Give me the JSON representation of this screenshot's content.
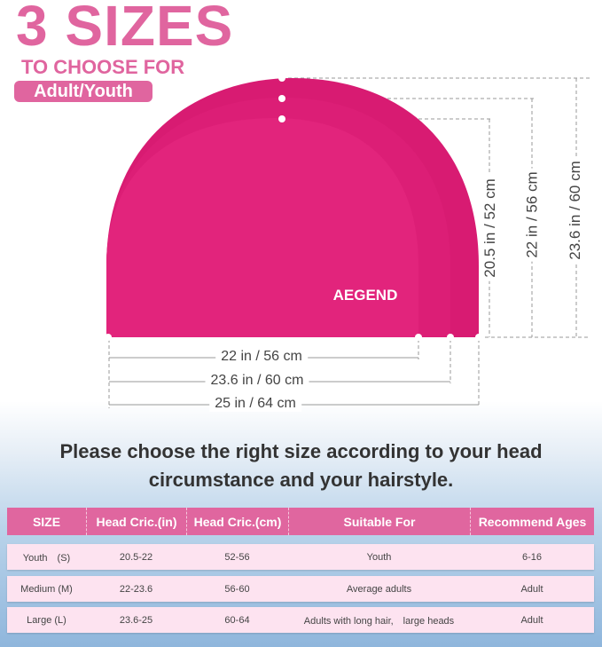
{
  "header": {
    "title": "3 SIZES",
    "subtitle": "TO CHOOSE FOR",
    "badge": "Adult/Youth"
  },
  "product": {
    "brand": "AEGEND",
    "color": "#e0217a"
  },
  "heights": [
    "20.5 in / 52 cm",
    "22 in / 56 cm",
    "23.6 in / 60 cm"
  ],
  "widths": [
    "22 in / 56 cm",
    "23.6 in / 60 cm",
    "25 in / 64 cm"
  ],
  "message": {
    "line1": "Please choose the right size according to your head",
    "line2": "circumstance and your hairstyle."
  },
  "table": {
    "headers": [
      "SIZE",
      "Head Cric.(in)",
      "Head Cric.(cm)",
      "Suitable For",
      "Recommend Ages"
    ],
    "rows": [
      [
        "Youth　(S)",
        "20.5-22",
        "52-56",
        "Youth",
        "6-16"
      ],
      [
        "Medium (M)",
        "22-23.6",
        "56-60",
        "Average adults",
        "Adult"
      ],
      [
        "Large (L)",
        "23.6-25",
        "60-64",
        "Adults with long hair,　large heads",
        "Adult"
      ]
    ]
  },
  "colors": {
    "accent": "#e0659f",
    "header_bg": "#e0669f",
    "row_bg": "#fde3f0"
  }
}
